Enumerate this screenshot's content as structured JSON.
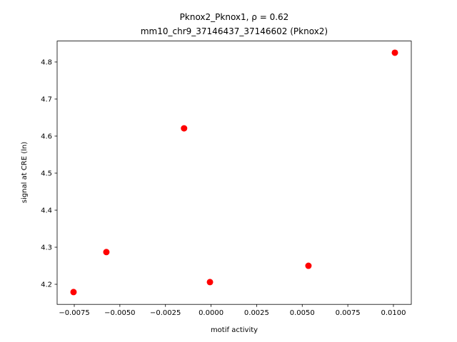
{
  "chart_data": {
    "type": "scatter",
    "title": "Pknox2_Pknox1, ρ = 0.62",
    "subtitle": "mm10_chr9_37146437_37146602 (Pknox2)",
    "x_label": "motif activity",
    "y_label": "signal at CRE (ln)",
    "color": "#ff0000",
    "x": [
      -0.00754,
      -0.00574,
      -0.00148,
      -6e-05,
      0.00534,
      0.01008
    ],
    "y": [
      4.179,
      4.287,
      4.621,
      4.206,
      4.25,
      4.825
    ],
    "xlim": [
      -0.00844,
      0.01098
    ],
    "ylim": [
      4.1458,
      4.8565
    ],
    "xticks": [
      {
        "value": -0.0075,
        "label": "−0.0075"
      },
      {
        "value": -0.005,
        "label": "−0.0050"
      },
      {
        "value": -0.0025,
        "label": "−0.0025"
      },
      {
        "value": 0,
        "label": "0.0000"
      },
      {
        "value": 0.0025,
        "label": "0.0025"
      },
      {
        "value": 0.005,
        "label": "0.0050"
      },
      {
        "value": 0.0075,
        "label": "0.0075"
      },
      {
        "value": 0.01,
        "label": "0.0100"
      }
    ],
    "yticks": [
      4.2,
      4.3,
      4.4,
      4.5,
      4.6,
      4.7,
      4.8
    ]
  }
}
